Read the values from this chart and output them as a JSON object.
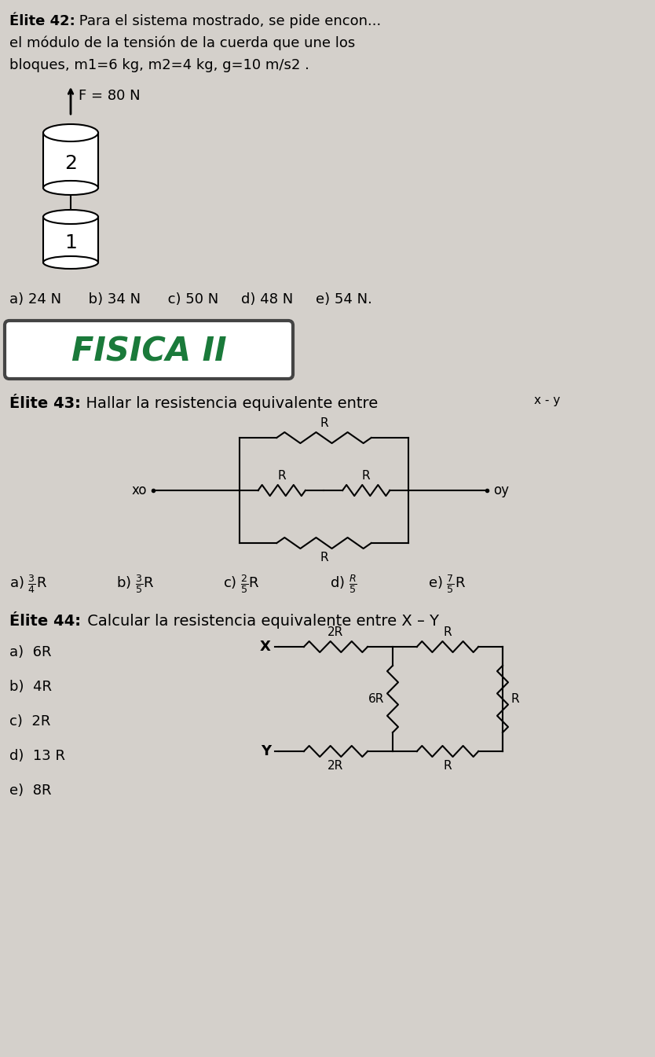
{
  "bg_color": "#d4d0cb",
  "title42_bold": "Élite 42:",
  "text42_line1": " Para el sistema mostrado, se pide encon...",
  "text42_line2": "el módulo de la tensión de la cuerda que une los",
  "text42_line3": "bloques, m1=6 kg, m2=4 kg, g=10 m/s2 .",
  "F_label": "F = 80 N",
  "answers42": "a) 24 N      b) 34 N      c) 50 N     d) 48 N     e) 54 N.",
  "fisica_text": "FISICA II",
  "fisica_color": "#1a7a3a",
  "title43_bold": "Élite 43:",
  "text43": "  Hallar la resistencia equivalente entre",
  "xy_sup": "x - y",
  "title44_bold": "Élite 44:",
  "text44": " Calcular la resistencia equivalente entre X – Y",
  "answers44": [
    "a)  6R",
    "b)  4R",
    "c)  2R",
    "d)  13 R",
    "e)  8R"
  ]
}
